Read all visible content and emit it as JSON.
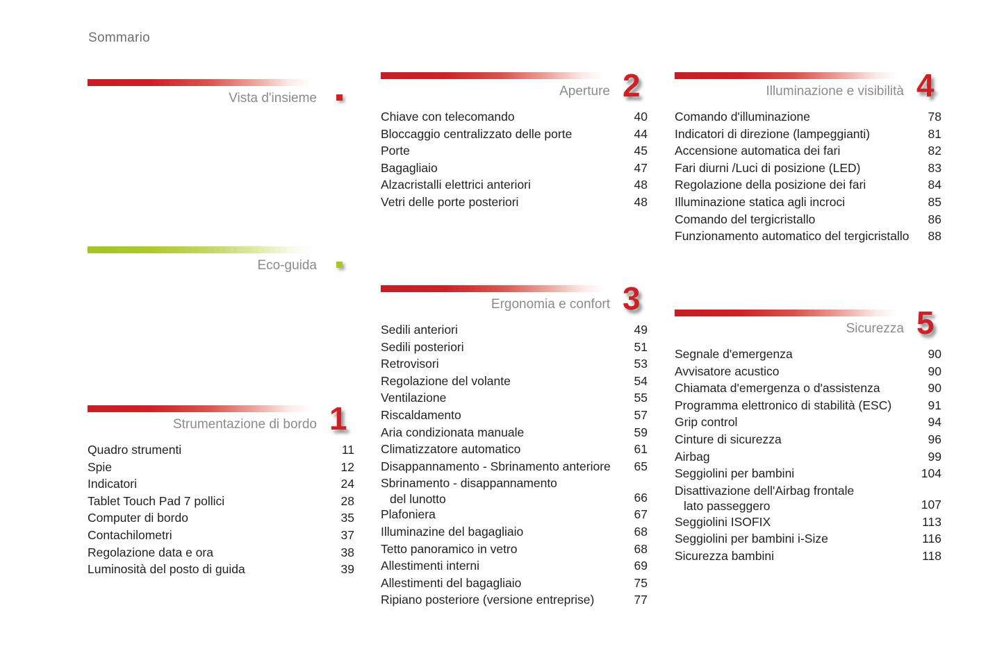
{
  "page": {
    "title": "Sommario"
  },
  "colors": {
    "accent_red": "#cc2127",
    "accent_green": "#a9c71f",
    "heading_gray": "#8a8b8d",
    "item_text": "#231f20"
  },
  "sections": [
    {
      "id": "vista-dinsieme",
      "title": "Vista d'insieme",
      "accent": "red",
      "marker": "square"
    },
    {
      "id": "eco-guida",
      "title": "Eco-guida",
      "accent": "green",
      "marker": "square"
    },
    {
      "id": "strumentazione-di-bordo",
      "title": "Strumentazione di bordo",
      "num": "1",
      "accent": "red",
      "items": [
        {
          "label": "Quadro strumenti",
          "page": "11"
        },
        {
          "label": "Spie",
          "page": "12"
        },
        {
          "label": "Indicatori",
          "page": "24"
        },
        {
          "label": "Tablet Touch Pad 7 pollici",
          "page": "28"
        },
        {
          "label": "Computer di bordo",
          "page": "35"
        },
        {
          "label": "Contachilometri",
          "page": "37"
        },
        {
          "label": "Regolazione data e ora",
          "page": "38"
        },
        {
          "label": "Luminosità del posto di guida",
          "page": "39"
        }
      ]
    },
    {
      "id": "aperture",
      "title": "Aperture",
      "num": "2",
      "accent": "red",
      "items": [
        {
          "label": "Chiave con telecomando",
          "page": "40"
        },
        {
          "label": "Bloccaggio centralizzato delle porte",
          "page": "44"
        },
        {
          "label": "Porte",
          "page": "45"
        },
        {
          "label": "Bagagliaio",
          "page": "47"
        },
        {
          "label": "Alzacristalli elettrici anteriori",
          "page": "48"
        },
        {
          "label": "Vetri delle porte posteriori",
          "page": "48"
        }
      ]
    },
    {
      "id": "ergonomia-e-confort",
      "title": "Ergonomia e confort",
      "num": "3",
      "accent": "red",
      "items": [
        {
          "label": "Sedili anteriori",
          "page": "49"
        },
        {
          "label": "Sedili posteriori",
          "page": "51"
        },
        {
          "label": "Retrovisori",
          "page": "53"
        },
        {
          "label": "Regolazione del volante",
          "page": "54"
        },
        {
          "label": "Ventilazione",
          "page": "55"
        },
        {
          "label": "Riscaldamento",
          "page": "57"
        },
        {
          "label": "Aria condizionata manuale",
          "page": "59"
        },
        {
          "label": "Climatizzatore automatico",
          "page": "61"
        },
        {
          "label": "Disappannamento - Sbrinamento anteriore",
          "page": "65"
        },
        {
          "label": "Sbrinamento - disappannamento",
          "label2": "del lunotto",
          "page": "66"
        },
        {
          "label": "Plafoniera",
          "page": "67"
        },
        {
          "label": "Illuminazine del bagagliaio",
          "page": "68"
        },
        {
          "label": "Tetto panoramico in vetro",
          "page": "68"
        },
        {
          "label": "Allestimenti interni",
          "page": "69"
        },
        {
          "label": "Allestimenti del bagagliaio",
          "page": "75"
        },
        {
          "label": "Ripiano posteriore (versione entreprise)",
          "page": "77"
        }
      ]
    },
    {
      "id": "illuminazione-e-visibilita",
      "title": "Illuminazione e visibilità",
      "num": "4",
      "accent": "red",
      "items": [
        {
          "label": "Comando d'illuminazione",
          "page": "78"
        },
        {
          "label": "Indicatori di direzione (lampeggianti)",
          "page": "81"
        },
        {
          "label": "Accensione automatica dei fari",
          "page": "82"
        },
        {
          "label": "Fari diurni /Luci di posizione (LED)",
          "page": "83"
        },
        {
          "label": "Regolazione della posizione dei fari",
          "page": "84"
        },
        {
          "label": "Illuminazione statica agli incroci",
          "page": "85"
        },
        {
          "label": "Comando del tergicristallo",
          "page": "86"
        },
        {
          "label": "Funzionamento automatico del tergicristallo",
          "page": "88"
        }
      ]
    },
    {
      "id": "sicurezza",
      "title": "Sicurezza",
      "num": "5",
      "accent": "red",
      "items": [
        {
          "label": "Segnale d'emergenza",
          "page": "90"
        },
        {
          "label": "Avvisatore acustico",
          "page": "90"
        },
        {
          "label": "Chiamata d'emergenza o d'assistenza",
          "page": "90"
        },
        {
          "label": "Programma elettronico di stabilità (ESC)",
          "page": "91"
        },
        {
          "label": "Grip control",
          "page": "94"
        },
        {
          "label": "Cinture di sicurezza",
          "page": "96"
        },
        {
          "label": "Airbag",
          "page": "99"
        },
        {
          "label": "Seggiolini per bambini",
          "page": "104"
        },
        {
          "label": "Disattivazione dell'Airbag frontale",
          "label2": "lato passeggero",
          "page": "107"
        },
        {
          "label": "Seggiolini ISOFIX",
          "page": "113"
        },
        {
          "label": "Seggiolini per bambini i-Size",
          "page": "116"
        },
        {
          "label": "Sicurezza bambini",
          "page": "118"
        }
      ]
    }
  ]
}
